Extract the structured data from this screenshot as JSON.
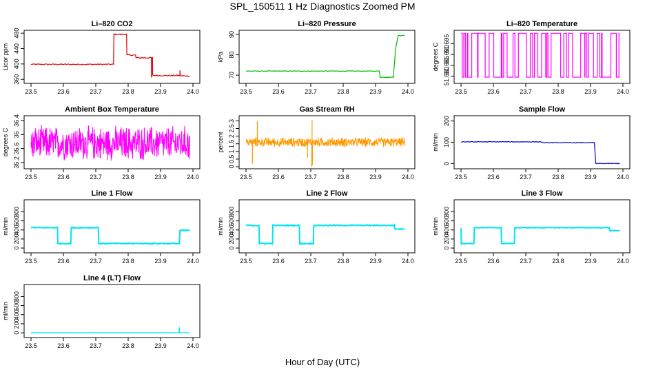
{
  "figure": {
    "title": "SPL_150511  1 Hz Diagnostics Zoomed PM",
    "xlabel": "Hour of Day (UTC)"
  },
  "chart_data": [
    {
      "type": "line",
      "title": "Li–820 CO2",
      "ylabel": "Licor ppm",
      "color": "#dd0000",
      "xlim": [
        23.5,
        24.0
      ],
      "ylim": [
        355,
        482
      ],
      "xticks": [
        "23.5",
        "23.6",
        "23.7",
        "23.8",
        "23.9",
        "24.0"
      ],
      "yticks": [
        360,
        400,
        440,
        480
      ],
      "segments": [
        [
          23.5,
          23.755,
          399
        ],
        [
          23.756,
          23.795,
          477
        ],
        [
          23.796,
          23.823,
          423
        ],
        [
          23.824,
          23.875,
          416
        ],
        [
          23.876,
          23.96,
          370
        ],
        [
          23.962,
          23.99,
          369
        ]
      ],
      "spikes": [
        [
          23.96,
          383
        ],
        [
          23.872,
          365
        ]
      ],
      "noise": 1.5
    },
    {
      "type": "line",
      "title": "Li–820 Pressure",
      "ylabel": "kPa",
      "color": "#00bb00",
      "xlim": [
        23.5,
        24.0
      ],
      "ylim": [
        67,
        91
      ],
      "xticks": [
        "23.5",
        "23.6",
        "23.7",
        "23.8",
        "23.9",
        "24.0"
      ],
      "yticks": [
        70,
        80,
        90
      ],
      "segments": [
        [
          23.5,
          23.912,
          72
        ],
        [
          23.914,
          23.955,
          69
        ],
        [
          23.97,
          23.99,
          89.5
        ]
      ],
      "ramp": [
        [
          23.955,
          69
        ],
        [
          23.962,
          83
        ],
        [
          23.97,
          89.5
        ]
      ],
      "noise": 0.15
    },
    {
      "type": "toggle",
      "title": "Li–820 Temperature",
      "ylabel": "degrees C",
      "color": "#ff00ff",
      "xlim": [
        23.5,
        24.0
      ],
      "ylim": [
        51.6776,
        51.7002
      ],
      "xticks": [
        "23.5",
        "23.6",
        "23.7",
        "23.8",
        "23.9",
        "24.0"
      ],
      "yticks": [
        51.68,
        51.685,
        51.69,
        51.695
      ],
      "levels": [
        51.6795,
        51.6998
      ]
    },
    {
      "type": "noise",
      "title": "Ambient Box Temperature",
      "ylabel": "degrees C",
      "color": "#ff00ff",
      "xlim": [
        23.5,
        24.0
      ],
      "ylim": [
        35.08,
        36.48
      ],
      "xticks": [
        "23.5",
        "23.6",
        "23.7",
        "23.8",
        "23.9",
        "24.0"
      ],
      "yticks": [
        35.2,
        35.6,
        36.0,
        36.4
      ],
      "center": 35.75,
      "spread": 0.55
    },
    {
      "type": "noise",
      "title": "Gas Stream RH",
      "ylabel": "percent",
      "color": "#ff9900",
      "xlim": [
        23.5,
        24.0
      ],
      "ylim": [
        0,
        3.2
      ],
      "xticks": [
        "23.5",
        "23.6",
        "23.7",
        "23.8",
        "23.9",
        "24.0"
      ],
      "yticks": [
        0.0,
        0.5,
        1.0,
        1.5,
        2.0,
        2.5,
        3.0
      ],
      "center": 1.6,
      "spread": 0.35,
      "spikes": [
        [
          23.535,
          3.0
        ],
        [
          23.704,
          3.05
        ],
        [
          23.703,
          0.0
        ],
        [
          23.705,
          0.1
        ],
        [
          23.69,
          0.6
        ],
        [
          23.52,
          0.2
        ]
      ]
    },
    {
      "type": "line",
      "title": "Sample Flow",
      "ylabel": "ml/min",
      "color": "#0000cc",
      "xlim": [
        23.5,
        24.0
      ],
      "ylim": [
        -15,
        215
      ],
      "xticks": [
        "23.5",
        "23.6",
        "23.7",
        "23.8",
        "23.9",
        "24.0"
      ],
      "yticks": [
        0,
        100,
        200
      ],
      "segments": [
        [
          23.5,
          23.75,
          102
        ],
        [
          23.75,
          23.912,
          98
        ],
        [
          23.916,
          23.99,
          0
        ]
      ],
      "noise": 1.5
    },
    {
      "type": "line",
      "title": "Line 1 Flow",
      "ylabel": "ml/min",
      "color": "#00e5ee",
      "xlim": [
        23.5,
        24.0
      ],
      "ylim": [
        -60,
        1020
      ],
      "xticks": [
        "23.5",
        "23.6",
        "23.7",
        "23.8",
        "23.9",
        "24.0"
      ],
      "yticks": [
        0,
        200,
        400,
        600,
        800
      ],
      "segments": [
        [
          23.5,
          23.582,
          450
        ],
        [
          23.583,
          23.623,
          100
        ],
        [
          23.624,
          23.708,
          450
        ],
        [
          23.709,
          23.958,
          100
        ],
        [
          23.96,
          23.99,
          390
        ]
      ],
      "noise": 12
    },
    {
      "type": "line",
      "title": "Line 2 Flow",
      "ylabel": "ml/min",
      "color": "#00e5ee",
      "xlim": [
        23.5,
        24.0
      ],
      "ylim": [
        -60,
        1020
      ],
      "xticks": [
        "23.5",
        "23.6",
        "23.7",
        "23.8",
        "23.9",
        "24.0"
      ],
      "yticks": [
        0,
        200,
        400,
        600,
        800
      ],
      "segments": [
        [
          23.5,
          23.54,
          500
        ],
        [
          23.541,
          23.582,
          100
        ],
        [
          23.583,
          23.665,
          500
        ],
        [
          23.666,
          23.708,
          100
        ],
        [
          23.709,
          23.958,
          500
        ],
        [
          23.96,
          23.99,
          420
        ]
      ],
      "noise": 12
    },
    {
      "type": "line",
      "title": "Line 3 Flow",
      "ylabel": "ml/min",
      "color": "#00e5ee",
      "xlim": [
        23.5,
        24.0
      ],
      "ylim": [
        -60,
        1020
      ],
      "xticks": [
        "23.5",
        "23.6",
        "23.7",
        "23.8",
        "23.9",
        "24.0"
      ],
      "yticks": [
        0,
        200,
        400,
        600,
        800
      ],
      "segments": [
        [
          23.5,
          23.5,
          440
        ],
        [
          23.501,
          23.54,
          100
        ],
        [
          23.541,
          23.624,
          450
        ],
        [
          23.625,
          23.665,
          100
        ],
        [
          23.666,
          23.958,
          450
        ],
        [
          23.96,
          23.99,
          385
        ]
      ],
      "noise": 8
    },
    {
      "type": "line",
      "title": "Line 4 (LT) Flow",
      "ylabel": "ml/min",
      "color": "#00e5ee",
      "xlim": [
        23.5,
        24.0
      ],
      "ylim": [
        -60,
        1020
      ],
      "xticks": [
        "23.5",
        "23.6",
        "23.7",
        "23.8",
        "23.9",
        "24.0"
      ],
      "yticks": [
        0,
        200,
        400,
        600,
        800
      ],
      "segments": [
        [
          23.5,
          23.99,
          2
        ]
      ],
      "spikes": [
        [
          23.958,
          120
        ]
      ],
      "noise": 1
    }
  ]
}
